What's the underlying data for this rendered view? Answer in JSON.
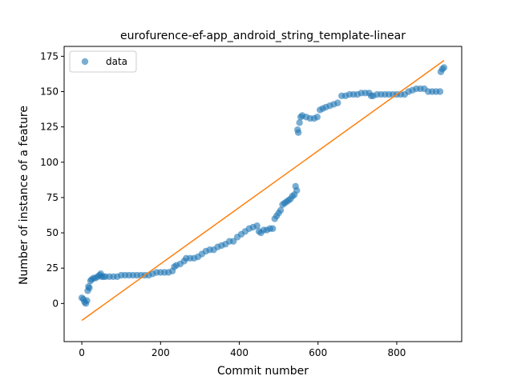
{
  "chart_data": {
    "type": "scatter",
    "title": "eurofurence-ef-app_android_string_template-linear",
    "xlabel": "Commit number",
    "ylabel": "Number of instance of a feature",
    "xlim": [
      -45,
      965
    ],
    "ylim": [
      -27,
      182
    ],
    "xticks": [
      0,
      200,
      400,
      600,
      800
    ],
    "yticks": [
      0,
      25,
      50,
      75,
      100,
      125,
      150,
      175
    ],
    "grid": false,
    "legend": {
      "entries": [
        "data"
      ],
      "placement": "upper-left"
    },
    "colors": {
      "data": "#1f77b4",
      "fit": "#ff7f0e",
      "axes": "#000000"
    },
    "series": [
      {
        "name": "data",
        "kind": "scatter",
        "points": [
          [
            0,
            4
          ],
          [
            4,
            3
          ],
          [
            7,
            1
          ],
          [
            10,
            0
          ],
          [
            13,
            2
          ],
          [
            15,
            9
          ],
          [
            17,
            12
          ],
          [
            19,
            11
          ],
          [
            22,
            16
          ],
          [
            25,
            17
          ],
          [
            30,
            18
          ],
          [
            35,
            18
          ],
          [
            40,
            19
          ],
          [
            45,
            20
          ],
          [
            48,
            21
          ],
          [
            50,
            19
          ],
          [
            55,
            19
          ],
          [
            60,
            19
          ],
          [
            70,
            19
          ],
          [
            80,
            19
          ],
          [
            90,
            19
          ],
          [
            100,
            20
          ],
          [
            110,
            20
          ],
          [
            120,
            20
          ],
          [
            130,
            20
          ],
          [
            140,
            20
          ],
          [
            150,
            20
          ],
          [
            160,
            20
          ],
          [
            170,
            20
          ],
          [
            180,
            21
          ],
          [
            190,
            22
          ],
          [
            200,
            22
          ],
          [
            210,
            22
          ],
          [
            220,
            22
          ],
          [
            230,
            23
          ],
          [
            235,
            26
          ],
          [
            240,
            27
          ],
          [
            250,
            28
          ],
          [
            260,
            30
          ],
          [
            265,
            32
          ],
          [
            275,
            32
          ],
          [
            285,
            32
          ],
          [
            295,
            33
          ],
          [
            305,
            35
          ],
          [
            315,
            37
          ],
          [
            325,
            38
          ],
          [
            335,
            38
          ],
          [
            345,
            40
          ],
          [
            355,
            41
          ],
          [
            365,
            42
          ],
          [
            375,
            44
          ],
          [
            385,
            44
          ],
          [
            395,
            47
          ],
          [
            405,
            49
          ],
          [
            415,
            51
          ],
          [
            425,
            53
          ],
          [
            435,
            54
          ],
          [
            445,
            55
          ],
          [
            450,
            51
          ],
          [
            455,
            50
          ],
          [
            462,
            52
          ],
          [
            470,
            52
          ],
          [
            478,
            53
          ],
          [
            485,
            53
          ],
          [
            490,
            60
          ],
          [
            495,
            62
          ],
          [
            500,
            64
          ],
          [
            505,
            66
          ],
          [
            510,
            70
          ],
          [
            515,
            71
          ],
          [
            520,
            72
          ],
          [
            525,
            73
          ],
          [
            530,
            74
          ],
          [
            535,
            76
          ],
          [
            540,
            77
          ],
          [
            543,
            83
          ],
          [
            546,
            80
          ],
          [
            548,
            123
          ],
          [
            550,
            121
          ],
          [
            553,
            128
          ],
          [
            556,
            132
          ],
          [
            560,
            133
          ],
          [
            570,
            132
          ],
          [
            580,
            131
          ],
          [
            590,
            131
          ],
          [
            598,
            132
          ],
          [
            605,
            137
          ],
          [
            612,
            138
          ],
          [
            620,
            139
          ],
          [
            630,
            140
          ],
          [
            640,
            141
          ],
          [
            650,
            142
          ],
          [
            660,
            147
          ],
          [
            670,
            147
          ],
          [
            680,
            148
          ],
          [
            690,
            148
          ],
          [
            700,
            148
          ],
          [
            710,
            149
          ],
          [
            720,
            149
          ],
          [
            730,
            149
          ],
          [
            735,
            147
          ],
          [
            740,
            147
          ],
          [
            750,
            148
          ],
          [
            760,
            148
          ],
          [
            770,
            148
          ],
          [
            780,
            148
          ],
          [
            790,
            148
          ],
          [
            800,
            148
          ],
          [
            810,
            148
          ],
          [
            820,
            148
          ],
          [
            830,
            150
          ],
          [
            840,
            151
          ],
          [
            850,
            152
          ],
          [
            860,
            152
          ],
          [
            870,
            152
          ],
          [
            880,
            150
          ],
          [
            890,
            150
          ],
          [
            900,
            150
          ],
          [
            910,
            150
          ],
          [
            912,
            164
          ],
          [
            916,
            166
          ],
          [
            920,
            167
          ]
        ]
      },
      {
        "name": "",
        "kind": "line",
        "points": [
          [
            0,
            -12
          ],
          [
            920,
            172
          ]
        ]
      }
    ]
  }
}
